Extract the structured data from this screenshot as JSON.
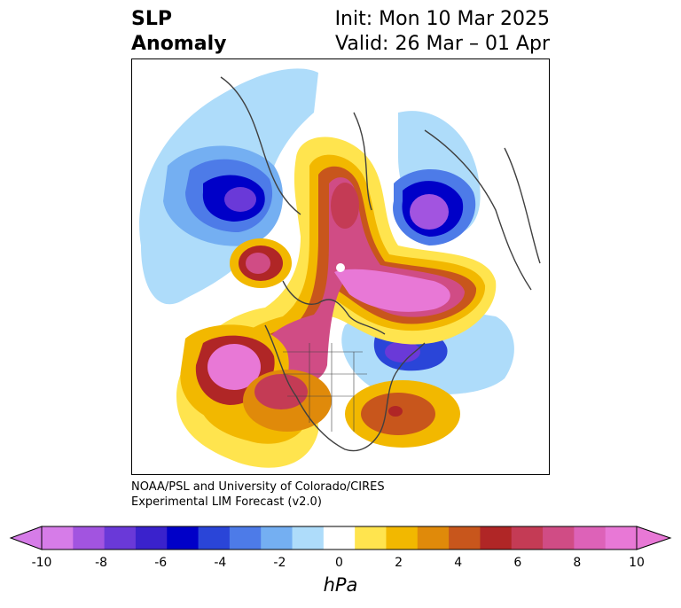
{
  "title": {
    "line1": "SLP",
    "line2": "Anomaly"
  },
  "init": {
    "line1": "Init: Mon 10 Mar 2025",
    "line2": "Valid: 26 Mar – 01 Apr"
  },
  "credit": {
    "line1": "NOAA/PSL and University of Colorado/CIRES",
    "line2": "Experimental LIM Forecast (v2.0)"
  },
  "colorbar": {
    "unit": "hPa",
    "ticks": [
      "-10",
      "-8",
      "-6",
      "-4",
      "-2",
      "0",
      "2",
      "4",
      "6",
      "8",
      "10"
    ],
    "colors": [
      "#d67ce8",
      "#a254e0",
      "#6a39d8",
      "#3a22cc",
      "#0000c8",
      "#2a45d8",
      "#4d7be8",
      "#74aff2",
      "#aedcfa",
      "#ffffff",
      "#ffe44e",
      "#f2b800",
      "#e08a0a",
      "#c8561c",
      "#b02626",
      "#c43b55",
      "#d04c85",
      "#dd62b8",
      "#e878d6"
    ],
    "extend_low": "#d67ce8",
    "extend_high": "#e878d6"
  }
}
